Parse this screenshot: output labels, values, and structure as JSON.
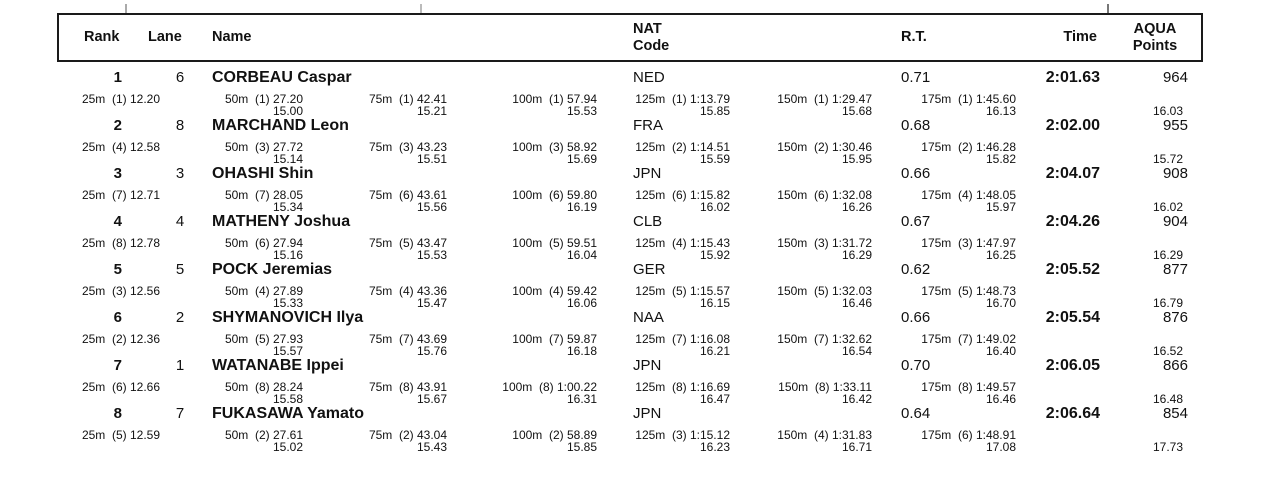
{
  "header": {
    "rank": "Rank",
    "lane": "Lane",
    "name": "Name",
    "nat": "NAT\nCode",
    "rt": "R.T.",
    "time": "Time",
    "aqua": "AQUA\nPoints"
  },
  "colors": {
    "text": "#111111",
    "border": "#1a1a1a",
    "background": "#ffffff"
  },
  "results": [
    {
      "rank": "1",
      "lane": "6",
      "name": "CORBEAU Caspar",
      "nat": "NED",
      "rt": "0.71",
      "time": "2:01.63",
      "points": "964",
      "splits": [
        {
          "t": "25m  (1) 12.20",
          "s": ""
        },
        {
          "t": "50m  (1) 27.20",
          "s": "15.00"
        },
        {
          "t": "75m  (1) 42.41",
          "s": "15.21"
        },
        {
          "t": "100m  (1) 57.94",
          "s": "15.53"
        },
        {
          "t": "125m  (1) 1:13.79",
          "s": "15.85"
        },
        {
          "t": "150m  (1) 1:29.47",
          "s": "15.68"
        },
        {
          "t": "175m  (1) 1:45.60",
          "s": "16.13"
        }
      ],
      "final_split": "16.03"
    },
    {
      "rank": "2",
      "lane": "8",
      "name": "MARCHAND Leon",
      "nat": "FRA",
      "rt": "0.68",
      "time": "2:02.00",
      "points": "955",
      "splits": [
        {
          "t": "25m  (4) 12.58",
          "s": ""
        },
        {
          "t": "50m  (3) 27.72",
          "s": "15.14"
        },
        {
          "t": "75m  (3) 43.23",
          "s": "15.51"
        },
        {
          "t": "100m  (3) 58.92",
          "s": "15.69"
        },
        {
          "t": "125m  (2) 1:14.51",
          "s": "15.59"
        },
        {
          "t": "150m  (2) 1:30.46",
          "s": "15.95"
        },
        {
          "t": "175m  (2) 1:46.28",
          "s": "15.82"
        }
      ],
      "final_split": "15.72"
    },
    {
      "rank": "3",
      "lane": "3",
      "name": "OHASHI Shin",
      "nat": "JPN",
      "rt": "0.66",
      "time": "2:04.07",
      "points": "908",
      "splits": [
        {
          "t": "25m  (7) 12.71",
          "s": ""
        },
        {
          "t": "50m  (7) 28.05",
          "s": "15.34"
        },
        {
          "t": "75m  (6) 43.61",
          "s": "15.56"
        },
        {
          "t": "100m  (6) 59.80",
          "s": "16.19"
        },
        {
          "t": "125m  (6) 1:15.82",
          "s": "16.02"
        },
        {
          "t": "150m  (6) 1:32.08",
          "s": "16.26"
        },
        {
          "t": "175m  (4) 1:48.05",
          "s": "15.97"
        }
      ],
      "final_split": "16.02"
    },
    {
      "rank": "4",
      "lane": "4",
      "name": "MATHENY Joshua",
      "nat": "CLB",
      "rt": "0.67",
      "time": "2:04.26",
      "points": "904",
      "splits": [
        {
          "t": "25m  (8) 12.78",
          "s": ""
        },
        {
          "t": "50m  (6) 27.94",
          "s": "15.16"
        },
        {
          "t": "75m  (5) 43.47",
          "s": "15.53"
        },
        {
          "t": "100m  (5) 59.51",
          "s": "16.04"
        },
        {
          "t": "125m  (4) 1:15.43",
          "s": "15.92"
        },
        {
          "t": "150m  (3) 1:31.72",
          "s": "16.29"
        },
        {
          "t": "175m  (3) 1:47.97",
          "s": "16.25"
        }
      ],
      "final_split": "16.29"
    },
    {
      "rank": "5",
      "lane": "5",
      "name": "POCK Jeremias",
      "nat": "GER",
      "rt": "0.62",
      "time": "2:05.52",
      "points": "877",
      "splits": [
        {
          "t": "25m  (3) 12.56",
          "s": ""
        },
        {
          "t": "50m  (4) 27.89",
          "s": "15.33"
        },
        {
          "t": "75m  (4) 43.36",
          "s": "15.47"
        },
        {
          "t": "100m  (4) 59.42",
          "s": "16.06"
        },
        {
          "t": "125m  (5) 1:15.57",
          "s": "16.15"
        },
        {
          "t": "150m  (5) 1:32.03",
          "s": "16.46"
        },
        {
          "t": "175m  (5) 1:48.73",
          "s": "16.70"
        }
      ],
      "final_split": "16.79"
    },
    {
      "rank": "6",
      "lane": "2",
      "name": "SHYMANOVICH Ilya",
      "nat": "NAA",
      "rt": "0.66",
      "time": "2:05.54",
      "points": "876",
      "splits": [
        {
          "t": "25m  (2) 12.36",
          "s": ""
        },
        {
          "t": "50m  (5) 27.93",
          "s": "15.57"
        },
        {
          "t": "75m  (7) 43.69",
          "s": "15.76"
        },
        {
          "t": "100m  (7) 59.87",
          "s": "16.18"
        },
        {
          "t": "125m  (7) 1:16.08",
          "s": "16.21"
        },
        {
          "t": "150m  (7) 1:32.62",
          "s": "16.54"
        },
        {
          "t": "175m  (7) 1:49.02",
          "s": "16.40"
        }
      ],
      "final_split": "16.52"
    },
    {
      "rank": "7",
      "lane": "1",
      "name": "WATANABE Ippei",
      "nat": "JPN",
      "rt": "0.70",
      "time": "2:06.05",
      "points": "866",
      "splits": [
        {
          "t": "25m  (6) 12.66",
          "s": ""
        },
        {
          "t": "50m  (8) 28.24",
          "s": "15.58"
        },
        {
          "t": "75m  (8) 43.91",
          "s": "15.67"
        },
        {
          "t": "100m  (8) 1:00.22",
          "s": "16.31"
        },
        {
          "t": "125m  (8) 1:16.69",
          "s": "16.47"
        },
        {
          "t": "150m  (8) 1:33.11",
          "s": "16.42"
        },
        {
          "t": "175m  (8) 1:49.57",
          "s": "16.46"
        }
      ],
      "final_split": "16.48"
    },
    {
      "rank": "8",
      "lane": "7",
      "name": "FUKASAWA Yamato",
      "nat": "JPN",
      "rt": "0.64",
      "time": "2:06.64",
      "points": "854",
      "splits": [
        {
          "t": "25m  (5) 12.59",
          "s": ""
        },
        {
          "t": "50m  (2) 27.61",
          "s": "15.02"
        },
        {
          "t": "75m  (2) 43.04",
          "s": "15.43"
        },
        {
          "t": "100m  (2) 58.89",
          "s": "15.85"
        },
        {
          "t": "125m  (3) 1:15.12",
          "s": "16.23"
        },
        {
          "t": "150m  (4) 1:31.83",
          "s": "16.71"
        },
        {
          "t": "175m  (6) 1:48.91",
          "s": "17.08"
        }
      ],
      "final_split": "17.73"
    }
  ]
}
